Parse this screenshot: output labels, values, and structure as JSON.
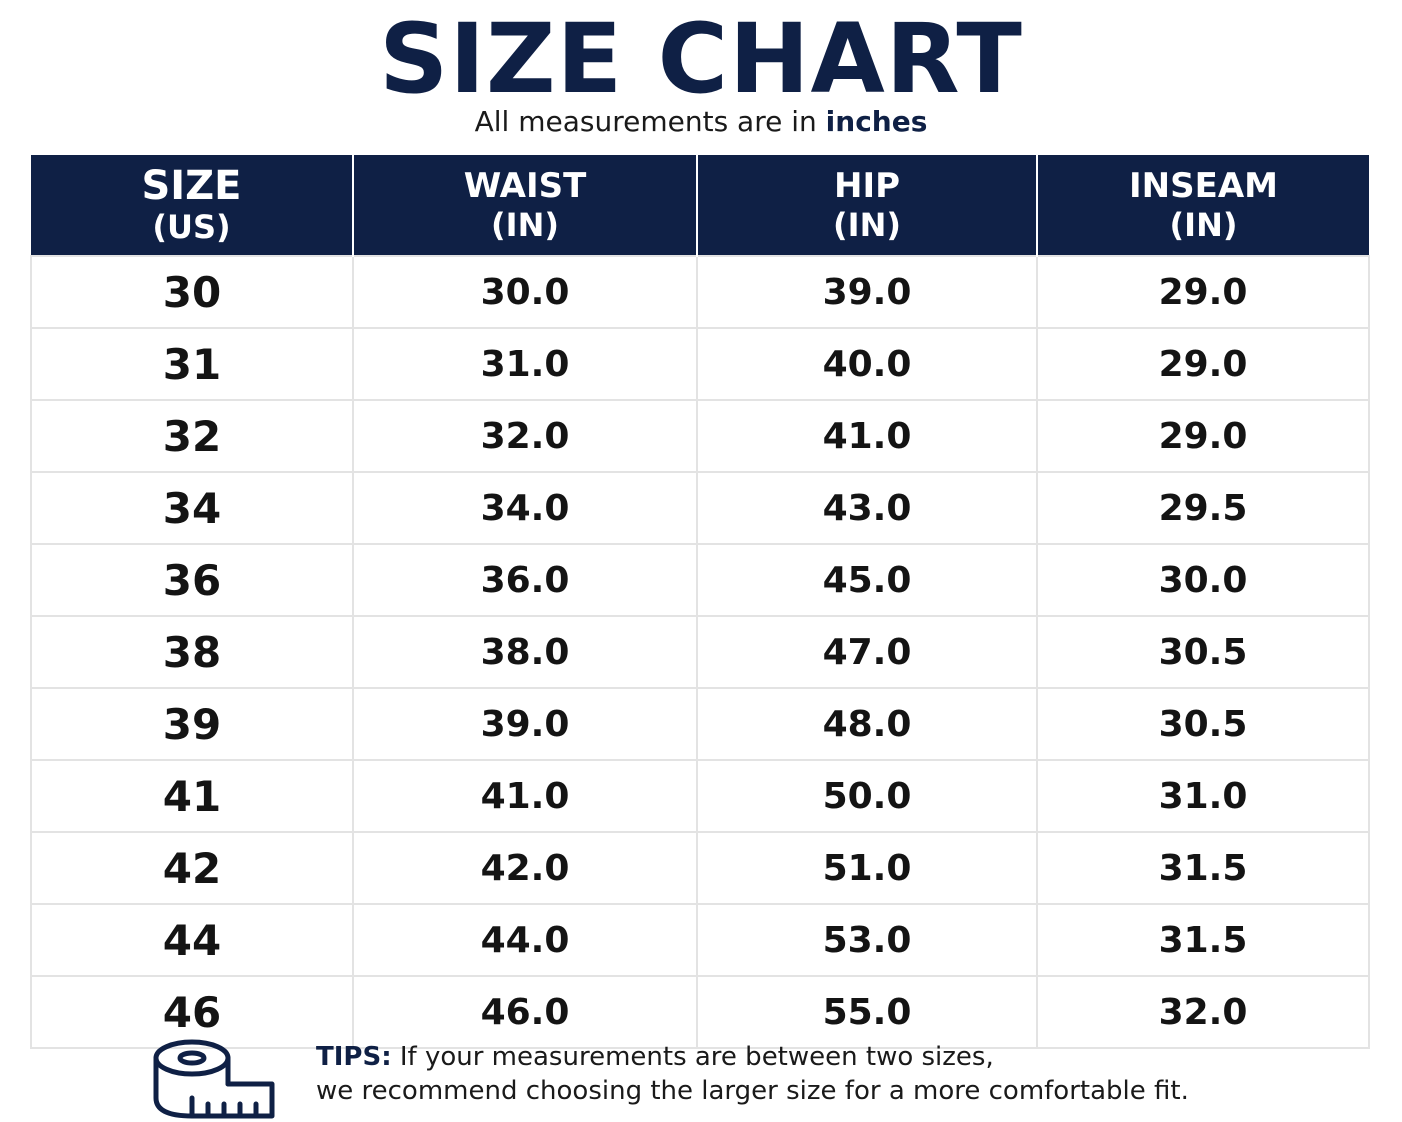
{
  "title": "SIZE CHART",
  "subtitle": {
    "prefix": "All measurements are in",
    "emphasis": "inches"
  },
  "table": {
    "headers": [
      {
        "line1": "SIZE",
        "line2": "(US)"
      },
      {
        "line1": "WAIST",
        "line2": "(IN)"
      },
      {
        "line1": "HIP",
        "line2": "(IN)"
      },
      {
        "line1": "INSEAM",
        "line2": "(IN)"
      }
    ],
    "rows": [
      [
        "30",
        "30.0",
        "39.0",
        "29.0"
      ],
      [
        "31",
        "31.0",
        "40.0",
        "29.0"
      ],
      [
        "32",
        "32.0",
        "41.0",
        "29.0"
      ],
      [
        "34",
        "34.0",
        "43.0",
        "29.5"
      ],
      [
        "36",
        "36.0",
        "45.0",
        "30.0"
      ],
      [
        "38",
        "38.0",
        "47.0",
        "30.5"
      ],
      [
        "39",
        "39.0",
        "48.0",
        "30.5"
      ],
      [
        "41",
        "41.0",
        "50.0",
        "31.0"
      ],
      [
        "42",
        "42.0",
        "51.0",
        "31.5"
      ],
      [
        "44",
        "44.0",
        "53.0",
        "31.5"
      ],
      [
        "46",
        "46.0",
        "55.0",
        "32.0"
      ]
    ]
  },
  "tips": {
    "label": "TIPS:",
    "line1": "If your measurements are between two sizes,",
    "line2": "we recommend choosing the larger size for a more comfortable fit.",
    "icon": "measuring-tape-icon"
  },
  "colors": {
    "navy": "#0f2045",
    "grid": "#e3e3e3",
    "text": "#141414"
  }
}
